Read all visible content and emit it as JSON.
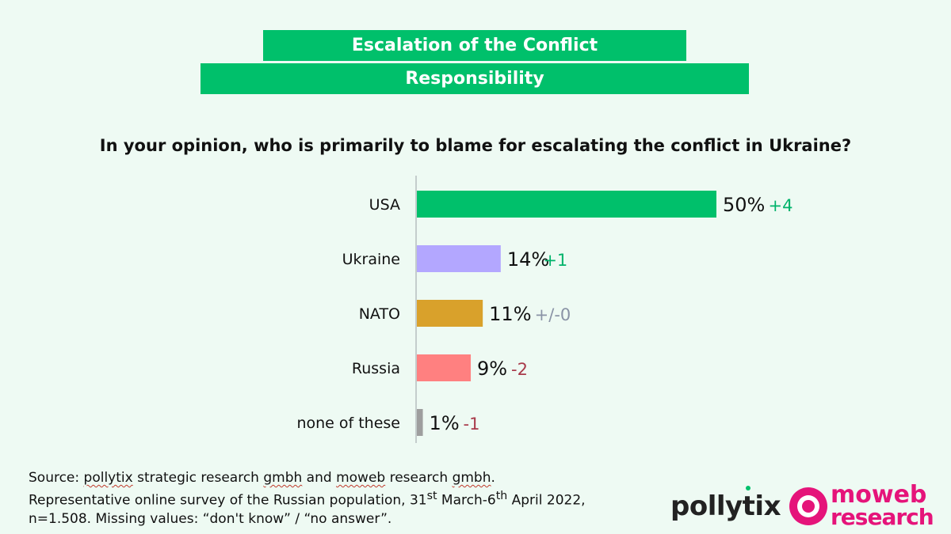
{
  "header": {
    "title": "Escalation of the Conflict",
    "subtitle": "Responsibility"
  },
  "question": "In your opinion, who is primarily to blame for escalating the conflict in Ukraine?",
  "chart_data": {
    "type": "bar",
    "orientation": "horizontal",
    "categories": [
      "USA",
      "Ukraine",
      "NATO",
      "Russia",
      "none of these"
    ],
    "values": [
      50,
      14,
      11,
      9,
      1
    ],
    "value_labels": [
      "50%",
      "14%",
      "11%",
      "9%",
      "1%"
    ],
    "changes": [
      "+4",
      "+1",
      "+/-0",
      "-2",
      "-1"
    ],
    "bar_colors": [
      "#00c06b",
      "#b3a7ff",
      "#d9a12b",
      "#ff8080",
      "#9e9e9e"
    ],
    "change_colors": [
      "#00b36b",
      "#00b36b",
      "#8a93a6",
      "#a83a4a",
      "#a83a4a"
    ],
    "xlim": [
      0,
      50
    ],
    "grid": false,
    "legend": "none"
  },
  "source": {
    "prefix": "Source: ",
    "org1": "pollytix",
    "mid1": " strategic research ",
    "org1_suffix": "gmbh",
    "mid2": " and ",
    "org2": "moweb",
    "mid3": " research ",
    "org2_suffix": "gmbh",
    "end": ".",
    "line2_a": "Representative online survey of the Russian population, 31",
    "line2_sup1": "st",
    "line2_b": " March-6",
    "line2_sup2": "th",
    "line2_c": " April 2022,",
    "line3": "n=1.508. Missing values: “don't know” / “no answer”."
  },
  "logos": {
    "pollytix": "pollytix",
    "moweb_line1": "moweb",
    "moweb_line2": "research"
  }
}
